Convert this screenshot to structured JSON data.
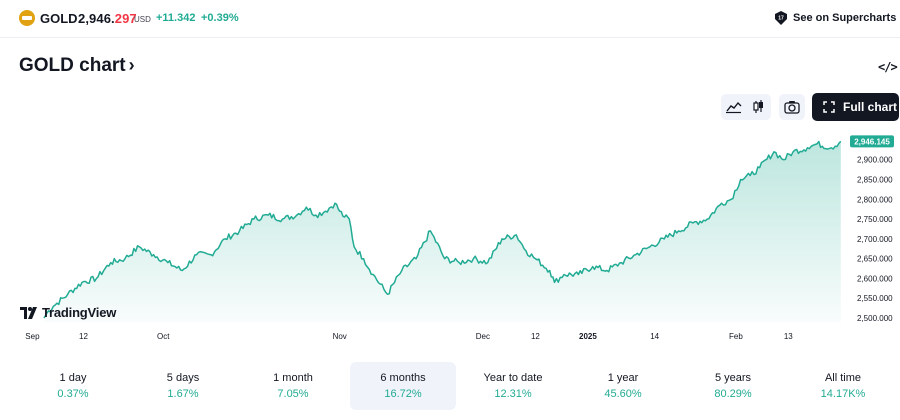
{
  "ticker": {
    "symbol": "GOLD",
    "price_main": "2,946.",
    "price_highlight": "297",
    "currency": "USD",
    "change": "+11.342",
    "change_percent": "+0.39%",
    "icon": "gold-coin-icon",
    "up_color": "#22ab94",
    "down_color": "#f23645"
  },
  "supercharts": {
    "label": "See on Supercharts",
    "icon": "supercharts-icon"
  },
  "title": {
    "text": "GOLD chart",
    "chevron": "›"
  },
  "embed": {
    "label": "</>",
    "icon": "embed-code-icon"
  },
  "toolbar": {
    "area_icon": "area-chart-icon",
    "candles_icon": "candlestick-icon",
    "camera_icon": "camera-icon",
    "fullscreen_icon": "fullscreen-icon",
    "full_chart_label": "Full chart"
  },
  "watermark": {
    "text": "TradingView",
    "icon": "tradingview-logo-icon"
  },
  "chart_data": {
    "type": "area",
    "title": "",
    "xlabel": "",
    "ylabel": "",
    "ylim": [
      2490,
      2975
    ],
    "ylabels": [
      "2,900.000",
      "2,850.000",
      "2,800.000",
      "2,750.000",
      "2,700.000",
      "2,650.000",
      "2,600.000",
      "2,550.000",
      "2,500.000"
    ],
    "yticks": [
      2900,
      2850,
      2800,
      2750,
      2700,
      2650,
      2600,
      2550,
      2500
    ],
    "xtick_labels": [
      "Sep",
      "12",
      "Oct",
      "Nov",
      "Dec",
      "12",
      "2025",
      "14",
      "Feb",
      "13"
    ],
    "xtick_days": [
      -2.4,
      8.3,
      25,
      62,
      92,
      103,
      114,
      128,
      145,
      156
    ],
    "bold_xtick": "2025",
    "last_value": 2946.145,
    "last_label": "2,946.145",
    "line_color": "#22ab94",
    "days": [
      0,
      1,
      2,
      5,
      8,
      11,
      14,
      17,
      20,
      23,
      26,
      29,
      32,
      35,
      38,
      41,
      44,
      47,
      50,
      53,
      55,
      57,
      59,
      61,
      62,
      63,
      64,
      65,
      67,
      69,
      72,
      75,
      78,
      81,
      84,
      87,
      90,
      93,
      96,
      99,
      101,
      103,
      106,
      107,
      109,
      112,
      115,
      118,
      121,
      124,
      127,
      130,
      133,
      136,
      139,
      142,
      144,
      146,
      148,
      150,
      153,
      155,
      157,
      160,
      162,
      165,
      167
    ],
    "values": [
      2500,
      2518,
      2530,
      2560,
      2590,
      2600,
      2640,
      2650,
      2680,
      2660,
      2640,
      2620,
      2660,
      2660,
      2700,
      2720,
      2750,
      2760,
      2750,
      2760,
      2780,
      2760,
      2770,
      2790,
      2770,
      2755,
      2750,
      2680,
      2650,
      2610,
      2560,
      2620,
      2650,
      2720,
      2650,
      2640,
      2650,
      2640,
      2700,
      2710,
      2670,
      2650,
      2620,
      2590,
      2610,
      2610,
      2630,
      2620,
      2640,
      2660,
      2680,
      2700,
      2720,
      2740,
      2750,
      2790,
      2800,
      2850,
      2860,
      2880,
      2920,
      2900,
      2920,
      2930,
      2940,
      2930,
      2946.145
    ],
    "x_range_days": [
      -5,
      168.5
    ]
  },
  "periods": [
    {
      "label": "1 day",
      "value": "0.37%",
      "active": false
    },
    {
      "label": "5 days",
      "value": "1.67%",
      "active": false
    },
    {
      "label": "1 month",
      "value": "7.05%",
      "active": false
    },
    {
      "label": "6 months",
      "value": "16.72%",
      "active": true
    },
    {
      "label": "Year to date",
      "value": "12.31%",
      "active": false
    },
    {
      "label": "1 year",
      "value": "45.60%",
      "active": false
    },
    {
      "label": "5 years",
      "value": "80.29%",
      "active": false
    },
    {
      "label": "All time",
      "value": "14.17K%",
      "active": false
    }
  ]
}
